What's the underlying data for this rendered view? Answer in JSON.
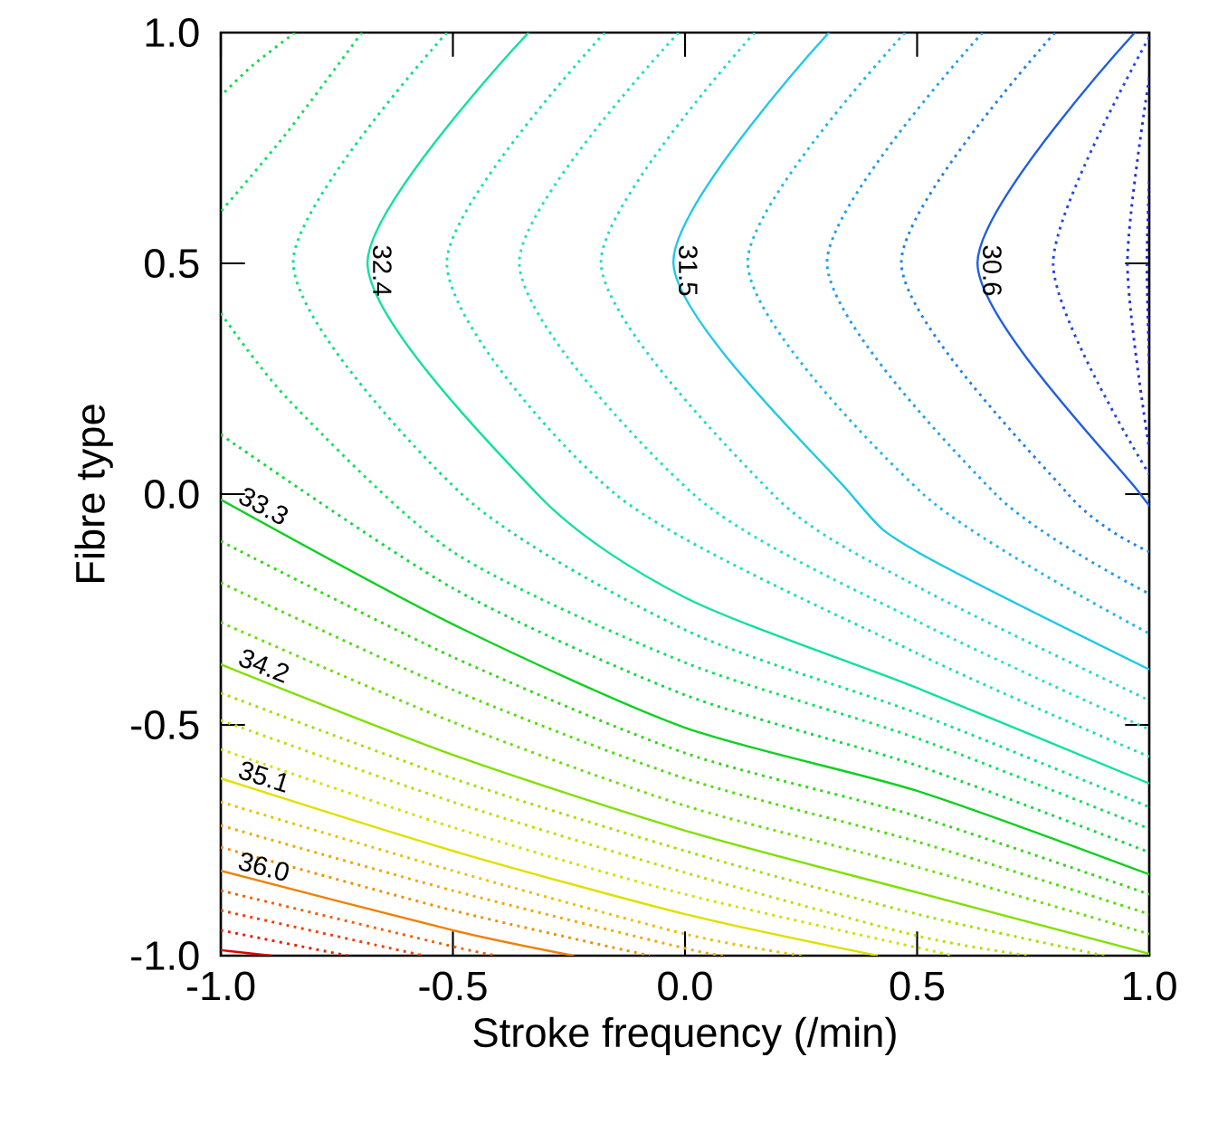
{
  "chart_data": {
    "type": "line",
    "xlabel": "Stroke frequency (/min)",
    "ylabel": "Fibre type",
    "xlim": [
      -1,
      1
    ],
    "ylim": [
      -1,
      1
    ],
    "xticks": [
      {
        "value": -1,
        "label": "-1.0"
      },
      {
        "value": -0.5,
        "label": "-0.5"
      },
      {
        "value": 0,
        "label": "0.0"
      },
      {
        "value": 0.5,
        "label": "0.5"
      },
      {
        "value": 1,
        "label": "1.0"
      }
    ],
    "yticks": [
      {
        "value": -1,
        "label": "-1.0"
      },
      {
        "value": -0.5,
        "label": "-0.5"
      },
      {
        "value": 0,
        "label": "0.0"
      },
      {
        "value": 0.5,
        "label": "0.5"
      },
      {
        "value": 1,
        "label": "1.0"
      }
    ],
    "series": [
      {
        "color": "#2020d0",
        "line_style": "dotted",
        "x": [
          1,
          0.995,
          1
        ],
        "values": [
          0.678,
          0.5,
          0.275
        ]
      },
      {
        "color": "#2030d8",
        "line_style": "dotted",
        "x": [
          1,
          0.953,
          1
        ],
        "values": [
          0.902,
          0.5,
          0.098
        ]
      },
      {
        "color": "#2048e0",
        "line_style": "dotted",
        "x": [
          1,
          0.793,
          1
        ],
        "values": [
          0.99,
          0.5,
          0.043
        ]
      },
      {
        "name": "30.6",
        "color": "#1f5fe0",
        "line_style": "solid",
        "x": [
          0.969,
          0.63,
          0.981,
          1
        ],
        "values": [
          1,
          0.5,
          0,
          -0.008
        ]
      },
      {
        "color": "#2080e8",
        "line_style": "dotted",
        "x": [
          0.797,
          0.466,
          0.825,
          1
        ],
        "values": [
          1,
          0.5,
          0,
          -0.125
        ]
      },
      {
        "color": "#20a0e8",
        "line_style": "dotted",
        "x": [
          0.641,
          0.306,
          0.669,
          1
        ],
        "values": [
          1,
          0.5,
          0,
          -0.216
        ]
      },
      {
        "color": "#20b8e8",
        "line_style": "dotted",
        "x": [
          0.474,
          0.135,
          0.513,
          1
        ],
        "values": [
          1,
          0.5,
          0,
          -0.302
        ]
      },
      {
        "name": "31.5",
        "color": "#20c8e8",
        "line_style": "solid",
        "x": [
          0.31,
          -0.025,
          0.357,
          0.5,
          1
        ],
        "values": [
          1,
          0.5,
          0,
          -0.125,
          -0.38
        ]
      },
      {
        "color": "#20d8d0",
        "line_style": "dotted",
        "x": [
          0.15,
          -0.181,
          0.189,
          0.5,
          1
        ],
        "values": [
          1,
          0.5,
          0,
          -0.2,
          -0.447
        ]
      },
      {
        "color": "#20e0c0",
        "line_style": "dotted",
        "x": [
          -0.014,
          -0.357,
          0.018,
          0.5,
          1
        ],
        "values": [
          1,
          0.5,
          0,
          -0.275,
          -0.51
        ]
      },
      {
        "color": "#18e0b0",
        "line_style": "dotted",
        "x": [
          -0.173,
          -0.513,
          -0.15,
          0.5,
          1
        ],
        "values": [
          1,
          0.5,
          0,
          -0.345,
          -0.569
        ]
      },
      {
        "name": "32.4",
        "color": "#10e0a0",
        "line_style": "solid",
        "x": [
          -0.337,
          -0.684,
          -0.318,
          0,
          0.5,
          1
        ],
        "values": [
          1,
          0.5,
          0,
          -0.224,
          -0.42,
          -0.627
        ]
      },
      {
        "color": "#10e080",
        "line_style": "dotted",
        "x": [
          -0.513,
          -0.844,
          -0.481,
          0,
          0.5,
          1
        ],
        "values": [
          1,
          0.5,
          0,
          -0.294,
          -0.475,
          -0.678
        ]
      },
      {
        "color": "#10e060",
        "line_style": "dotted",
        "x": [
          -0.696,
          -0.86,
          -1
        ],
        "values": [
          1,
          0.78,
          0.612
        ]
      },
      {
        "color": "#10e060",
        "line_style": "dotted",
        "x": [
          -1,
          -0.85,
          -0.5,
          0,
          0.5,
          1
        ],
        "values": [
          0.392,
          0.2,
          -0.125,
          -0.365,
          -0.529,
          -0.725
        ]
      },
      {
        "color": "#10d840",
        "line_style": "dotted",
        "x": [
          -0.84,
          -0.93,
          -1
        ],
        "values": [
          1,
          0.93,
          0.863
        ]
      },
      {
        "color": "#10d840",
        "line_style": "dotted",
        "x": [
          -1,
          -0.5,
          0,
          0.5,
          1
        ],
        "values": [
          0.129,
          -0.204,
          -0.435,
          -0.588,
          -0.776
        ]
      },
      {
        "name": "33.3",
        "color": "#10d020",
        "line_style": "solid",
        "x": [
          -1,
          -0.5,
          0,
          0.5,
          1
        ],
        "values": [
          -0.012,
          -0.282,
          -0.506,
          -0.643,
          -0.824
        ]
      },
      {
        "color": "#30d810",
        "line_style": "dotted",
        "x": [
          -1,
          -0.5,
          0,
          0.5,
          1
        ],
        "values": [
          -0.102,
          -0.353,
          -0.561,
          -0.698,
          -0.867
        ]
      },
      {
        "color": "#50dc08",
        "line_style": "dotted",
        "x": [
          -1,
          -0.5,
          0,
          0.5,
          1
        ],
        "values": [
          -0.192,
          -0.424,
          -0.616,
          -0.753,
          -0.91
        ]
      },
      {
        "color": "#68de04",
        "line_style": "dotted",
        "x": [
          -1,
          -0.5,
          0,
          0.5,
          1
        ],
        "values": [
          -0.278,
          -0.494,
          -0.675,
          -0.808,
          -0.953
        ]
      },
      {
        "name": "34.2",
        "color": "#80e000",
        "line_style": "solid",
        "x": [
          -1,
          -0.5,
          0,
          0.5,
          1
        ],
        "values": [
          -0.369,
          -0.565,
          -0.729,
          -0.863,
          -0.996
        ]
      },
      {
        "color": "#a0e000",
        "line_style": "dotted",
        "x": [
          -1,
          -0.5,
          0,
          0.5,
          0.903
        ],
        "values": [
          -0.431,
          -0.616,
          -0.773,
          -0.91,
          -1
        ]
      },
      {
        "color": "#b8e000",
        "line_style": "dotted",
        "x": [
          -1,
          -0.5,
          0,
          0.5,
          0.743
        ],
        "values": [
          -0.49,
          -0.667,
          -0.82,
          -0.957,
          -1
        ]
      },
      {
        "color": "#d0e000",
        "line_style": "dotted",
        "x": [
          -1,
          -0.5,
          0,
          0.579
        ],
        "values": [
          -0.553,
          -0.722,
          -0.867,
          -1
        ]
      },
      {
        "name": "35.1",
        "color": "#e0e000",
        "line_style": "solid",
        "x": [
          -1,
          -0.5,
          0,
          0.415
        ],
        "values": [
          -0.616,
          -0.773,
          -0.91,
          -1
        ]
      },
      {
        "color": "#e8c000",
        "line_style": "dotted",
        "x": [
          -1,
          -0.5,
          0,
          0.251
        ],
        "values": [
          -0.667,
          -0.816,
          -0.953,
          -1
        ]
      },
      {
        "color": "#f0a800",
        "line_style": "dotted",
        "x": [
          -1,
          -0.5,
          0,
          0.088
        ],
        "values": [
          -0.718,
          -0.859,
          -0.984,
          -1
        ]
      },
      {
        "color": "#f09000",
        "line_style": "dotted",
        "x": [
          -1,
          -0.5,
          -0.076
        ],
        "values": [
          -0.765,
          -0.902,
          -1
        ]
      },
      {
        "name": "36.0",
        "color": "#f08000",
        "line_style": "solid",
        "x": [
          -1,
          -0.5,
          -0.24
        ],
        "values": [
          -0.816,
          -0.945,
          -1
        ]
      },
      {
        "color": "#f06000",
        "line_style": "dotted",
        "x": [
          -1,
          -0.5,
          -0.404
        ],
        "values": [
          -0.859,
          -0.98,
          -1
        ]
      },
      {
        "color": "#f04000",
        "line_style": "dotted",
        "x": [
          -1,
          -0.563
        ],
        "values": [
          -0.902,
          -1
        ]
      },
      {
        "color": "#e82000",
        "line_style": "dotted",
        "x": [
          -1,
          -0.727
        ],
        "values": [
          -0.945,
          -1
        ]
      },
      {
        "color": "#e00000",
        "line_style": "solid",
        "x": [
          -1,
          -0.891
        ],
        "values": [
          -0.988,
          -1
        ]
      }
    ]
  }
}
